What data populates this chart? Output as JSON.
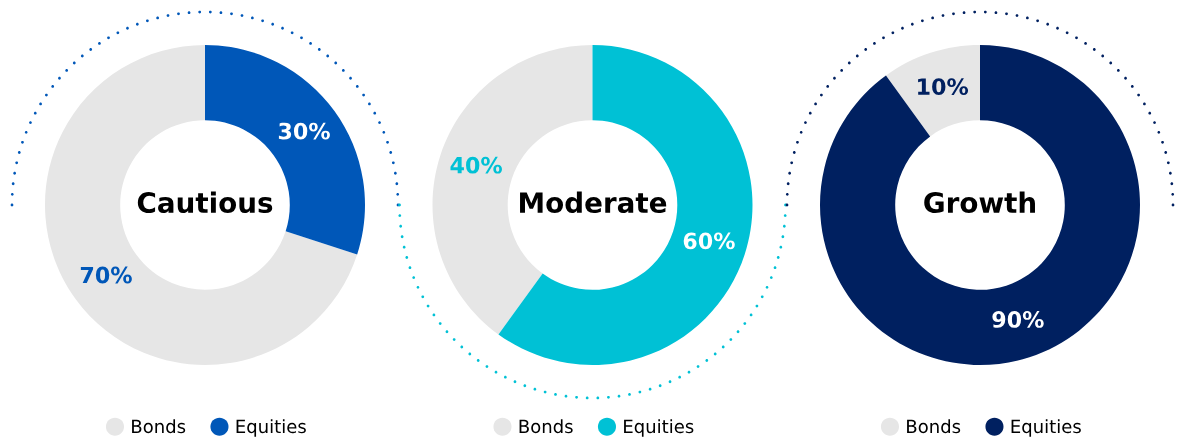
{
  "chart_data": [
    {
      "type": "donut",
      "title": "Cautious",
      "categories": [
        "Bonds",
        "Equities"
      ],
      "values": [
        70,
        30
      ],
      "colors": [
        "#e6e6e6",
        "#0057b8"
      ],
      "value_labels": [
        "70%",
        "30%"
      ],
      "legend": "bottom"
    },
    {
      "type": "donut",
      "title": "Moderate",
      "categories": [
        "Bonds",
        "Equities"
      ],
      "values": [
        40,
        60
      ],
      "colors": [
        "#e6e6e6",
        "#00c1d5"
      ],
      "value_labels": [
        "40%",
        "60%"
      ],
      "legend": "bottom"
    },
    {
      "type": "donut",
      "title": "Growth",
      "categories": [
        "Bonds",
        "Equities"
      ],
      "values": [
        10,
        90
      ],
      "colors": [
        "#e6e6e6",
        "#002060"
      ],
      "value_labels": [
        "10%",
        "90%"
      ],
      "legend": "bottom"
    }
  ]
}
